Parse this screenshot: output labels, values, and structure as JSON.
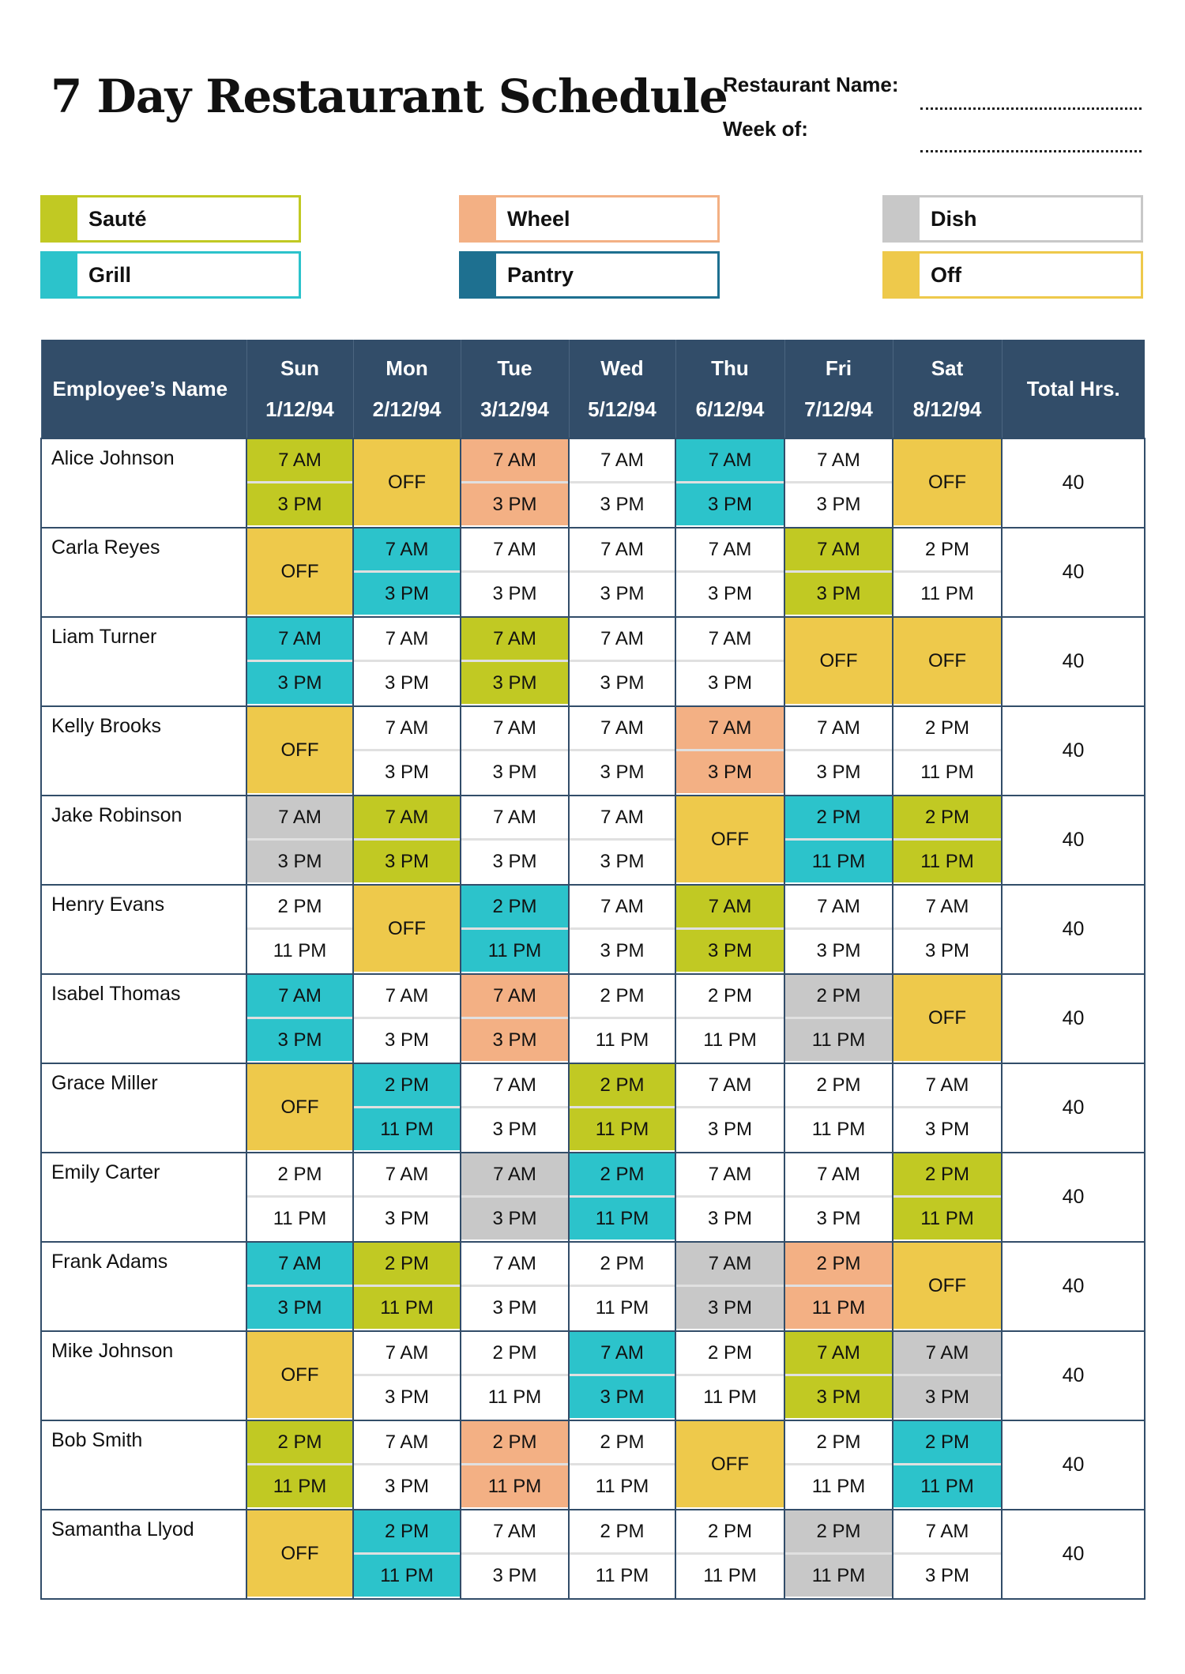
{
  "title": "7 Day Restaurant Schedule",
  "meta": {
    "restaurant_name_label": "Restaurant Name:",
    "week_of_label": "Week of:"
  },
  "colors": {
    "saute": "#c1c923",
    "wheel": "#f3b084",
    "dish": "#c8c8c8",
    "grill": "#2cc3cb",
    "pantry": "#1e7090",
    "off": "#eec94b",
    "header": "#324d69"
  },
  "legend": [
    {
      "key": "saute",
      "label": "Sauté"
    },
    {
      "key": "wheel",
      "label": "Wheel"
    },
    {
      "key": "dish",
      "label": "Dish"
    },
    {
      "key": "grill",
      "label": "Grill"
    },
    {
      "key": "pantry",
      "label": "Pantry"
    },
    {
      "key": "off",
      "label": "Off"
    }
  ],
  "table": {
    "name_header": "Employee’s Name",
    "total_header": "Total Hrs.",
    "days": [
      {
        "day": "Sun",
        "date": "1/12/94"
      },
      {
        "day": "Mon",
        "date": "2/12/94"
      },
      {
        "day": "Tue",
        "date": "3/12/94"
      },
      {
        "day": "Wed",
        "date": "5/12/94"
      },
      {
        "day": "Thu",
        "date": "6/12/94"
      },
      {
        "day": "Fri",
        "date": "7/12/94"
      },
      {
        "day": "Sat",
        "date": "8/12/94"
      }
    ],
    "employees": [
      {
        "name": "Alice Johnson",
        "total": "40",
        "shifts": [
          {
            "start": "7 AM",
            "end": "3 PM",
            "role": "saute"
          },
          {
            "off": "OFF"
          },
          {
            "start": "7 AM",
            "end": "3 PM",
            "role": "wheel"
          },
          {
            "start": "7 AM",
            "end": "3 PM"
          },
          {
            "start": "7 AM",
            "end": "3 PM",
            "role": "grill"
          },
          {
            "start": "7 AM",
            "end": "3 PM"
          },
          {
            "off": "OFF"
          }
        ]
      },
      {
        "name": "Carla Reyes",
        "total": "40",
        "shifts": [
          {
            "off": "OFF"
          },
          {
            "start": "7 AM",
            "end": "3 PM",
            "role": "grill"
          },
          {
            "start": "7 AM",
            "end": "3 PM"
          },
          {
            "start": "7 AM",
            "end": "3 PM"
          },
          {
            "start": "7 AM",
            "end": "3 PM"
          },
          {
            "start": "7 AM",
            "end": "3 PM",
            "role": "saute"
          },
          {
            "start": "2 PM",
            "end": "11 PM"
          }
        ]
      },
      {
        "name": "Liam Turner",
        "total": "40",
        "shifts": [
          {
            "start": "7 AM",
            "end": "3 PM",
            "role": "grill"
          },
          {
            "start": "7 AM",
            "end": "3 PM"
          },
          {
            "start": "7 AM",
            "end": "3 PM",
            "role": "saute"
          },
          {
            "start": "7 AM",
            "end": "3 PM"
          },
          {
            "start": "7 AM",
            "end": "3 PM"
          },
          {
            "off": "OFF"
          },
          {
            "off": "OFF"
          }
        ]
      },
      {
        "name": "Kelly Brooks",
        "total": "40",
        "shifts": [
          {
            "off": "OFF"
          },
          {
            "start": "7 AM",
            "end": "3 PM"
          },
          {
            "start": "7 AM",
            "end": "3 PM"
          },
          {
            "start": "7 AM",
            "end": "3 PM"
          },
          {
            "start": "7 AM",
            "end": "3 PM",
            "role": "wheel"
          },
          {
            "start": "7 AM",
            "end": "3 PM"
          },
          {
            "start": "2 PM",
            "end": "11 PM"
          }
        ]
      },
      {
        "name": "Jake Robinson",
        "total": "40",
        "shifts": [
          {
            "start": "7 AM",
            "end": "3 PM",
            "role": "dish"
          },
          {
            "start": "7 AM",
            "end": "3 PM",
            "role": "saute"
          },
          {
            "start": "7 AM",
            "end": "3 PM"
          },
          {
            "start": "7 AM",
            "end": "3 PM"
          },
          {
            "off": "OFF"
          },
          {
            "start": "2 PM",
            "end": "11 PM",
            "role": "grill"
          },
          {
            "start": "2 PM",
            "end": "11 PM",
            "role": "saute"
          }
        ]
      },
      {
        "name": "Henry Evans",
        "total": "40",
        "shifts": [
          {
            "start": "2 PM",
            "end": "11 PM"
          },
          {
            "off": "OFF"
          },
          {
            "start": "2 PM",
            "end": "11 PM",
            "role": "grill"
          },
          {
            "start": "7 AM",
            "end": "3 PM"
          },
          {
            "start": "7 AM",
            "end": "3 PM",
            "role": "saute"
          },
          {
            "start": "7 AM",
            "end": "3 PM"
          },
          {
            "start": "7 AM",
            "end": "3 PM"
          }
        ]
      },
      {
        "name": "Isabel Thomas",
        "total": "40",
        "shifts": [
          {
            "start": "7 AM",
            "end": "3 PM",
            "role": "grill"
          },
          {
            "start": "7 AM",
            "end": "3 PM"
          },
          {
            "start": "7 AM",
            "end": "3 PM",
            "role": "wheel"
          },
          {
            "start": "2 PM",
            "end": "11 PM"
          },
          {
            "start": "2 PM",
            "end": "11 PM"
          },
          {
            "start": "2 PM",
            "end": "11 PM",
            "role": "dish"
          },
          {
            "off": "OFF"
          }
        ]
      },
      {
        "name": "Grace Miller",
        "total": "40",
        "shifts": [
          {
            "off": "OFF"
          },
          {
            "start": "2 PM",
            "end": "11 PM",
            "role": "grill"
          },
          {
            "start": "7 AM",
            "end": "3 PM"
          },
          {
            "start": "2 PM",
            "end": "11 PM",
            "role": "saute"
          },
          {
            "start": "7 AM",
            "end": "3 PM"
          },
          {
            "start": "2 PM",
            "end": "11 PM"
          },
          {
            "start": "7 AM",
            "end": "3 PM"
          }
        ]
      },
      {
        "name": "Emily Carter",
        "total": "40",
        "shifts": [
          {
            "start": "2 PM",
            "end": "11 PM"
          },
          {
            "start": "7 AM",
            "end": "3 PM"
          },
          {
            "start": "7 AM",
            "end": "3 PM",
            "role": "dish"
          },
          {
            "start": "2 PM",
            "end": "11 PM",
            "role": "grill"
          },
          {
            "start": "7 AM",
            "end": "3 PM"
          },
          {
            "start": "7 AM",
            "end": "3 PM"
          },
          {
            "start": "2 PM",
            "end": "11 PM",
            "role": "saute"
          }
        ]
      },
      {
        "name": "Frank Adams",
        "total": "40",
        "shifts": [
          {
            "start": "7 AM",
            "end": "3 PM",
            "role": "grill"
          },
          {
            "start": "2 PM",
            "end": "11 PM",
            "role": "saute"
          },
          {
            "start": "7 AM",
            "end": "3 PM"
          },
          {
            "start": "2 PM",
            "end": "11 PM"
          },
          {
            "start": "7 AM",
            "end": "3 PM",
            "role": "dish"
          },
          {
            "start": "2 PM",
            "end": "11 PM",
            "role": "wheel"
          },
          {
            "off": "OFF"
          }
        ]
      },
      {
        "name": "Mike Johnson",
        "total": "40",
        "shifts": [
          {
            "off": "OFF"
          },
          {
            "start": "7 AM",
            "end": "3 PM"
          },
          {
            "start": "2 PM",
            "end": "11 PM"
          },
          {
            "start": "7 AM",
            "end": "3 PM",
            "role": "grill"
          },
          {
            "start": "2 PM",
            "end": "11 PM"
          },
          {
            "start": "7 AM",
            "end": "3 PM",
            "role": "saute"
          },
          {
            "start": "7 AM",
            "end": "3 PM",
            "role": "dish"
          }
        ]
      },
      {
        "name": "Bob Smith",
        "total": "40",
        "shifts": [
          {
            "start": "2 PM",
            "end": "11 PM",
            "role": "saute"
          },
          {
            "start": "7 AM",
            "end": "3 PM"
          },
          {
            "start": "2 PM",
            "end": "11 PM",
            "role": "wheel"
          },
          {
            "start": "2 PM",
            "end": "11 PM"
          },
          {
            "off": "OFF"
          },
          {
            "start": "2 PM",
            "end": "11 PM"
          },
          {
            "start": "2 PM",
            "end": "11 PM",
            "role": "grill"
          }
        ]
      },
      {
        "name": "Samantha Llyod",
        "total": "40",
        "shifts": [
          {
            "off": "OFF"
          },
          {
            "start": "2 PM",
            "end": "11 PM",
            "role": "grill"
          },
          {
            "start": "7 AM",
            "end": "3 PM"
          },
          {
            "start": "2 PM",
            "end": "11 PM"
          },
          {
            "start": "2 PM",
            "end": "11 PM"
          },
          {
            "start": "2 PM",
            "end": "11 PM",
            "role": "dish"
          },
          {
            "start": "7 AM",
            "end": "3 PM"
          }
        ]
      }
    ]
  }
}
